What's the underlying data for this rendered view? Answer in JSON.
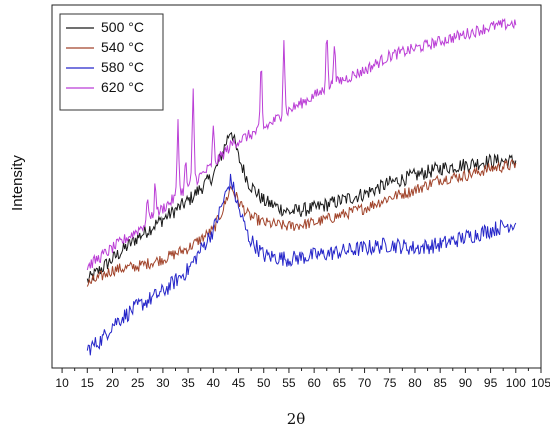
{
  "chart_data": {
    "type": "line",
    "title": "",
    "xlabel": "2θ",
    "ylabel": "Intensity",
    "xlim": [
      8,
      105
    ],
    "ylim": [
      0,
      100
    ],
    "x_ticks": [
      10,
      15,
      20,
      25,
      30,
      35,
      40,
      45,
      50,
      55,
      60,
      65,
      70,
      75,
      80,
      85,
      90,
      95,
      100,
      105
    ],
    "x_tick_labels": [
      "10",
      "15",
      "20",
      "25",
      "30",
      "35",
      "40",
      "45",
      "50",
      "55",
      "60",
      "65",
      "70",
      "75",
      "80",
      "85",
      "90",
      "95",
      "100",
      "105"
    ],
    "y_ticks_shown": false,
    "grid": false,
    "legend_position": "top-left",
    "series": [
      {
        "name": "500 °C",
        "color": "#1a1a1a",
        "noise": 2.0,
        "points": [
          [
            15,
            24
          ],
          [
            20,
            30
          ],
          [
            25,
            36
          ],
          [
            30,
            41
          ],
          [
            35,
            46
          ],
          [
            40,
            53
          ],
          [
            42,
            60
          ],
          [
            43.5,
            66
          ],
          [
            45,
            58
          ],
          [
            47,
            51
          ],
          [
            50,
            46
          ],
          [
            55,
            43
          ],
          [
            60,
            44
          ],
          [
            65,
            46
          ],
          [
            70,
            48
          ],
          [
            75,
            51
          ],
          [
            80,
            53
          ],
          [
            85,
            55
          ],
          [
            90,
            56
          ],
          [
            95,
            57
          ],
          [
            100,
            57
          ]
        ],
        "peaks": []
      },
      {
        "name": "540 °C",
        "color": "#a2452c",
        "noise": 1.6,
        "points": [
          [
            15,
            23
          ],
          [
            20,
            27
          ],
          [
            25,
            28
          ],
          [
            30,
            30
          ],
          [
            35,
            33
          ],
          [
            40,
            38
          ],
          [
            42,
            44
          ],
          [
            43.5,
            50
          ],
          [
            45,
            46
          ],
          [
            47,
            42
          ],
          [
            50,
            40
          ],
          [
            55,
            39
          ],
          [
            60,
            40
          ],
          [
            65,
            42
          ],
          [
            70,
            44
          ],
          [
            75,
            47
          ],
          [
            80,
            49
          ],
          [
            85,
            52
          ],
          [
            90,
            53
          ],
          [
            95,
            55
          ],
          [
            100,
            56
          ]
        ],
        "peaks": []
      },
      {
        "name": "580 °C",
        "color": "#2626c9",
        "noise": 2.2,
        "points": [
          [
            15,
            5
          ],
          [
            18,
            8
          ],
          [
            20,
            12
          ],
          [
            25,
            17
          ],
          [
            30,
            21
          ],
          [
            35,
            27
          ],
          [
            40,
            38
          ],
          [
            42,
            46
          ],
          [
            43.5,
            52
          ],
          [
            45,
            44
          ],
          [
            47,
            36
          ],
          [
            50,
            31
          ],
          [
            55,
            30
          ],
          [
            60,
            31
          ],
          [
            65,
            32
          ],
          [
            70,
            33
          ],
          [
            75,
            34
          ],
          [
            80,
            33
          ],
          [
            85,
            34
          ],
          [
            90,
            36
          ],
          [
            95,
            38
          ],
          [
            100,
            40
          ]
        ],
        "peaks": []
      },
      {
        "name": "620 °C",
        "color": "#bb3fd6",
        "noise": 1.6,
        "points": [
          [
            15,
            28
          ],
          [
            20,
            33
          ],
          [
            25,
            38
          ],
          [
            30,
            44
          ],
          [
            35,
            50
          ],
          [
            40,
            56
          ],
          [
            44,
            62
          ],
          [
            50,
            66
          ],
          [
            55,
            71
          ],
          [
            60,
            75
          ],
          [
            65,
            79
          ],
          [
            70,
            82
          ],
          [
            75,
            86
          ],
          [
            80,
            88
          ],
          [
            85,
            90
          ],
          [
            90,
            92
          ],
          [
            95,
            94
          ],
          [
            100,
            95
          ]
        ],
        "peaks": [
          [
            27,
            7
          ],
          [
            28.5,
            9
          ],
          [
            33,
            21
          ],
          [
            34.5,
            7
          ],
          [
            36,
            25
          ],
          [
            40,
            10
          ],
          [
            49.5,
            18
          ],
          [
            54,
            21
          ],
          [
            62.5,
            16
          ],
          [
            64,
            12
          ]
        ]
      }
    ]
  }
}
